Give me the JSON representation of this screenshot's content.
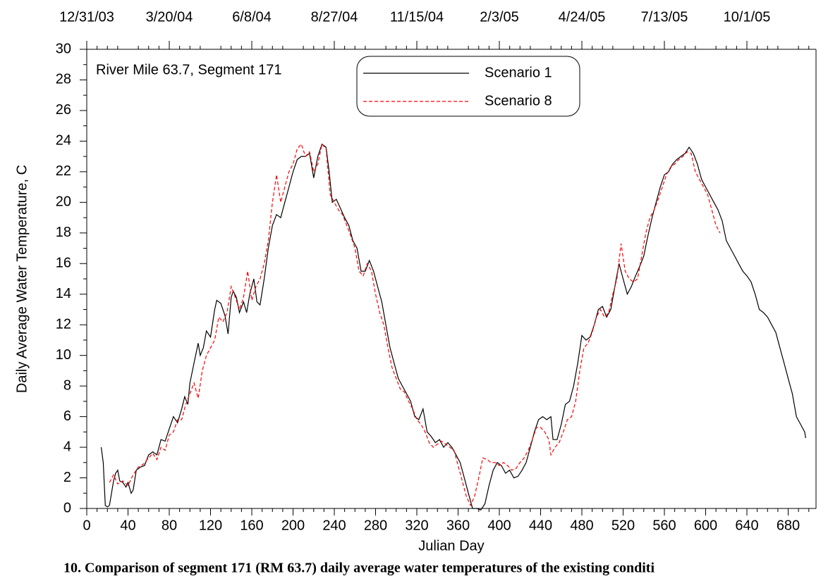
{
  "chart_data": {
    "type": "line",
    "annotation": "River Mile 63.7, Segment 171",
    "xlabel": "Julian Day",
    "ylabel": "Daily Average Water Temperature, C",
    "caption": "10. Comparison of segment 171 (RM 63.7) daily average water temperatures of the existing conditi",
    "xlim": [
      0,
      707
    ],
    "ylim": [
      0,
      30
    ],
    "xticks": [
      0,
      40,
      80,
      120,
      160,
      200,
      240,
      280,
      320,
      360,
      400,
      440,
      480,
      520,
      560,
      600,
      640,
      680
    ],
    "yticks": [
      0,
      2,
      4,
      6,
      8,
      10,
      12,
      14,
      16,
      18,
      20,
      22,
      24,
      26,
      28,
      30
    ],
    "x2ticks": [
      {
        "value": 0,
        "label": "12/31/03"
      },
      {
        "value": 80,
        "label": "3/20/04"
      },
      {
        "value": 160,
        "label": "6/8/04"
      },
      {
        "value": 240,
        "label": "8/27/04"
      },
      {
        "value": 320,
        "label": "11/15/04"
      },
      {
        "value": 400,
        "label": "2/3/05"
      },
      {
        "value": 480,
        "label": "4/24/05"
      },
      {
        "value": 560,
        "label": "7/13/05"
      },
      {
        "value": 640,
        "label": "10/1/05"
      }
    ],
    "series": [
      {
        "name": "Scenario 1",
        "color": "#000000",
        "dash": false,
        "x": [
          14,
          16,
          18,
          20,
          22,
          24,
          26,
          28,
          30,
          32,
          35,
          38,
          40,
          43,
          45,
          48,
          52,
          56,
          60,
          64,
          68,
          72,
          76,
          80,
          84,
          88,
          92,
          95,
          98,
          100,
          104,
          108,
          110,
          113,
          116,
          120,
          124,
          126,
          130,
          134,
          137,
          140,
          142,
          145,
          148,
          152,
          155,
          158,
          162,
          165,
          168,
          172,
          176,
          180,
          184,
          188,
          192,
          196,
          200,
          204,
          208,
          212,
          216,
          220,
          224,
          228,
          232,
          235,
          238,
          242,
          246,
          250,
          254,
          258,
          262,
          266,
          270,
          274,
          278,
          282,
          286,
          290,
          294,
          298,
          302,
          306,
          310,
          314,
          318,
          322,
          326,
          330,
          334,
          338,
          342,
          346,
          350,
          354,
          358,
          362,
          366,
          370,
          374,
          378,
          382,
          386,
          390,
          394,
          398,
          402,
          406,
          410,
          414,
          418,
          422,
          426,
          430,
          434,
          438,
          442,
          446,
          450,
          452,
          456,
          460,
          464,
          468,
          472,
          476,
          480,
          484,
          488,
          492,
          496,
          500,
          504,
          508,
          512,
          516,
          520,
          524,
          528,
          532,
          536,
          540,
          544,
          548,
          552,
          556,
          560,
          564,
          568,
          572,
          576,
          580,
          584,
          588,
          592,
          596,
          600,
          604,
          608,
          612,
          616,
          620,
          624,
          628,
          632,
          636,
          640,
          644,
          648,
          652,
          656,
          660,
          664,
          668,
          672,
          676,
          680,
          684,
          688,
          692,
          696,
          697
        ],
        "values": [
          4.0,
          3.0,
          0.2,
          0.1,
          0.2,
          1.0,
          1.8,
          2.3,
          2.5,
          1.8,
          1.7,
          1.4,
          1.7,
          1.0,
          1.2,
          2.5,
          2.7,
          2.8,
          3.5,
          3.7,
          3.5,
          4.5,
          4.4,
          5.2,
          6.0,
          5.6,
          6.5,
          7.3,
          6.8,
          8.2,
          9.5,
          10.8,
          10.0,
          10.5,
          11.6,
          11.2,
          13.0,
          13.6,
          13.4,
          12.6,
          11.4,
          13.8,
          14.2,
          13.8,
          12.8,
          13.5,
          12.8,
          14.0,
          15.0,
          13.5,
          13.3,
          15.0,
          17.0,
          18.5,
          19.2,
          19.0,
          20.0,
          21.0,
          22.0,
          22.8,
          23.0,
          23.0,
          23.2,
          21.6,
          23.0,
          23.8,
          23.6,
          22.0,
          20.0,
          20.2,
          19.6,
          19.0,
          18.5,
          17.5,
          17.0,
          15.5,
          15.5,
          16.2,
          15.5,
          14.5,
          13.5,
          12.0,
          10.5,
          9.5,
          8.5,
          8.0,
          7.5,
          7.0,
          6.0,
          5.8,
          6.5,
          5.0,
          4.7,
          4.3,
          4.5,
          4.0,
          4.3,
          4.0,
          3.5,
          3.0,
          2.0,
          1.0,
          0.0,
          0.0,
          -0.1,
          0.3,
          1.5,
          2.5,
          3.0,
          2.8,
          2.3,
          2.5,
          2.0,
          2.1,
          2.5,
          3.0,
          4.0,
          5.0,
          5.8,
          6.0,
          5.8,
          6.0,
          4.5,
          4.5,
          5.5,
          6.8,
          7.0,
          8.0,
          9.5,
          11.3,
          11.0,
          11.2,
          12.0,
          13.0,
          13.2,
          12.5,
          13.0,
          14.5,
          16.0,
          15.0,
          14.0,
          14.5,
          15.2,
          15.8,
          16.5,
          17.8,
          19.0,
          20.0,
          21.0,
          21.8,
          22.0,
          22.5,
          22.8,
          23.0,
          23.2,
          23.6,
          23.2,
          22.5,
          21.5,
          21.0,
          20.5,
          20.0,
          19.5,
          18.8,
          17.5,
          17.0,
          16.5,
          16.0,
          15.5,
          15.2,
          14.8,
          14.0,
          13.0,
          12.8,
          12.5,
          12.0,
          11.5,
          10.5,
          9.5,
          8.5,
          7.5,
          6.0,
          5.5,
          5.0,
          4.6
        ]
      },
      {
        "name": "Scenario 8",
        "color": "#ff0000",
        "dash": true,
        "x": [
          22,
          26,
          30,
          35,
          40,
          45,
          50,
          55,
          60,
          64,
          68,
          72,
          76,
          80,
          84,
          88,
          92,
          96,
          100,
          104,
          108,
          112,
          116,
          120,
          124,
          128,
          132,
          136,
          140,
          144,
          148,
          152,
          156,
          160,
          164,
          168,
          172,
          176,
          180,
          184,
          188,
          192,
          196,
          200,
          204,
          208,
          212,
          216,
          220,
          224,
          228,
          232,
          236,
          240,
          244,
          248,
          252,
          256,
          260,
          264,
          268,
          272,
          276,
          280,
          284,
          288,
          292,
          296,
          300,
          304,
          308,
          312,
          316,
          320,
          324,
          328,
          332,
          336,
          340,
          344,
          348,
          352,
          356,
          360,
          364,
          368,
          372,
          376,
          380,
          384,
          388,
          392,
          396,
          400,
          404,
          408,
          412,
          416,
          420,
          424,
          428,
          432,
          436,
          440,
          444,
          448,
          450,
          454,
          458,
          462,
          466,
          470,
          474,
          478,
          482,
          486,
          490,
          494,
          498,
          502,
          506,
          510,
          514,
          518,
          522,
          526,
          530,
          534,
          538,
          542,
          546,
          550,
          554,
          558,
          562,
          566,
          570,
          574,
          578,
          582,
          586,
          590,
          594,
          598,
          602,
          606,
          610,
          614
        ],
        "values": [
          1.7,
          2.2,
          1.6,
          1.8,
          1.5,
          2.2,
          2.7,
          2.9,
          3.3,
          3.6,
          3.2,
          4.0,
          3.8,
          4.8,
          5.0,
          5.8,
          5.8,
          6.8,
          7.5,
          8.2,
          7.2,
          9.0,
          10.0,
          10.5,
          11.0,
          12.5,
          12.2,
          12.8,
          14.5,
          13.8,
          13.0,
          13.8,
          15.5,
          13.6,
          14.5,
          15.0,
          16.0,
          17.5,
          20.0,
          21.8,
          20.0,
          21.0,
          22.0,
          22.5,
          23.5,
          23.8,
          23.0,
          23.3,
          22.0,
          22.5,
          23.8,
          23.5,
          20.5,
          20.0,
          19.5,
          19.2,
          18.5,
          17.8,
          17.0,
          15.5,
          15.2,
          16.0,
          15.5,
          14.0,
          12.8,
          12.0,
          10.5,
          9.2,
          8.5,
          7.8,
          7.6,
          7.0,
          6.5,
          5.8,
          5.5,
          5.0,
          4.3,
          4.0,
          4.2,
          4.4,
          4.2,
          4.0,
          3.8,
          2.8,
          1.8,
          0.8,
          0.2,
          0.8,
          2.0,
          3.3,
          3.2,
          3.0,
          3.0,
          2.8,
          3.0,
          2.8,
          2.5,
          2.6,
          3.0,
          3.3,
          3.8,
          4.5,
          5.3,
          5.3,
          5.0,
          4.5,
          3.5,
          4.0,
          4.3,
          5.0,
          5.8,
          6.0,
          7.0,
          9.0,
          10.5,
          10.8,
          11.5,
          12.5,
          13.0,
          12.5,
          12.8,
          14.0,
          15.0,
          17.3,
          15.5,
          15.0,
          14.8,
          15.0,
          16.5,
          18.0,
          19.0,
          19.5,
          20.2,
          21.0,
          21.8,
          22.3,
          22.5,
          22.8,
          23.0,
          23.3,
          23.2,
          22.0,
          21.5,
          21.0,
          20.5,
          19.5,
          18.5,
          18.0
        ]
      }
    ]
  }
}
